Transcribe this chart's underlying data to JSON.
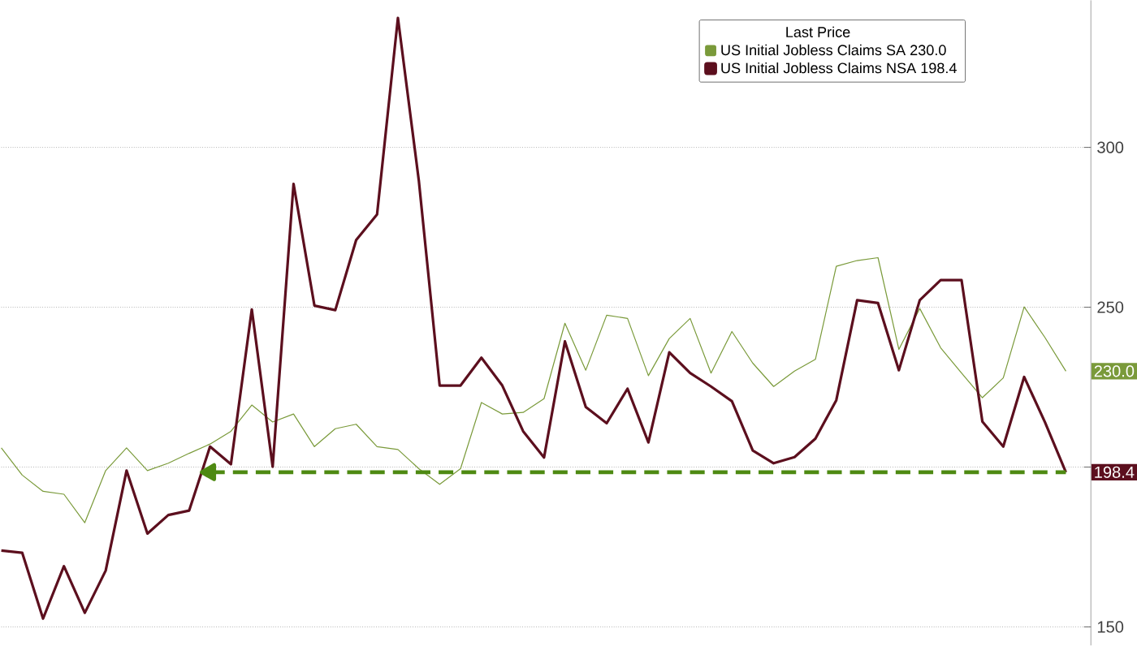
{
  "chart_data": {
    "type": "line",
    "legend_title": "Last Price",
    "legend": "top right",
    "grid": true,
    "categories": [
      null,
      null,
      null,
      null,
      null,
      null,
      null,
      null,
      null,
      null,
      null,
      null,
      null,
      null,
      null,
      null,
      null,
      null,
      null,
      null,
      null,
      null,
      null,
      null,
      null,
      null,
      null,
      null,
      null,
      null,
      null,
      null,
      null,
      null,
      null,
      null,
      null,
      null,
      null,
      null,
      null,
      null,
      null,
      null,
      null,
      null,
      null,
      null,
      null,
      null,
      null,
      null
    ],
    "ylim": [
      144.2,
      346
    ],
    "yticks": [
      150,
      {
        "value": 200,
        "label": null
      },
      250,
      300
    ],
    "series": [
      {
        "name": "US Initial Jobless Claims SA 230.0",
        "color": "#7a9a3a",
        "values": [
          206.0,
          197.5,
          192.4,
          191.5,
          182.6,
          198.9,
          206.0,
          198.9,
          201.2,
          204.3,
          207.2,
          211.2,
          219.4,
          214.1,
          216.6,
          206.4,
          212.0,
          213.4,
          206.4,
          205.5,
          199.5,
          194.6,
          199.5,
          220.2,
          216.6,
          217.1,
          221.4,
          245.0,
          230.3,
          247.5,
          246.5,
          228.6,
          240.2,
          246.5,
          229.4,
          242.4,
          232.5,
          225.2,
          230.0,
          233.7,
          262.8,
          264.6,
          265.5,
          236.8,
          249.6,
          237.3,
          229.4,
          221.7,
          227.9,
          250.1,
          240.5,
          230.0
        ],
        "value_labels": [
          null,
          null,
          null,
          null,
          null,
          null,
          null,
          null,
          null,
          null,
          null,
          null,
          null,
          null,
          null,
          null,
          null,
          null,
          null,
          null,
          null,
          null,
          null,
          null,
          null,
          null,
          null,
          null,
          null,
          null,
          null,
          null,
          null,
          null,
          null,
          null,
          null,
          null,
          null,
          null,
          null,
          null,
          null,
          null,
          null,
          null,
          null,
          null,
          null,
          null,
          null,
          "230.0"
        ]
      },
      {
        "name": "US Initial Jobless Claims NSA 198.4",
        "color": "#5c0f1e",
        "values": [
          173.9,
          173.2,
          152.6,
          169.0,
          154.4,
          167.6,
          198.9,
          179.2,
          185.0,
          186.4,
          206.4,
          200.9,
          249.3,
          200.1,
          288.6,
          250.5,
          249.1,
          271.0,
          279.0,
          340.5,
          289.7,
          225.5,
          225.5,
          234.2,
          225.5,
          211.2,
          203.0,
          239.3,
          218.8,
          213.7,
          224.5,
          207.7,
          235.9,
          229.4,
          225.2,
          220.6,
          205.2,
          201.2,
          203.1,
          208.9,
          220.9,
          252.2,
          251.3,
          230.3,
          252.2,
          258.5,
          258.5,
          214.2,
          206.4,
          228.2,
          214.0,
          198.4
        ],
        "value_labels": [
          null,
          null,
          null,
          null,
          null,
          null,
          null,
          null,
          null,
          null,
          null,
          null,
          null,
          null,
          null,
          null,
          null,
          null,
          null,
          null,
          null,
          null,
          null,
          null,
          null,
          null,
          null,
          null,
          null,
          null,
          null,
          null,
          null,
          null,
          null,
          null,
          null,
          null,
          null,
          null,
          null,
          null,
          null,
          null,
          null,
          null,
          null,
          null,
          null,
          null,
          null,
          "198.4"
        ]
      },
      {
        "color": "#4e8a12",
        "line_style": "dashed",
        "values": [
          null,
          null,
          null,
          null,
          null,
          null,
          null,
          null,
          null,
          null,
          198.4,
          198.4,
          198.4,
          198.4,
          198.4,
          198.4,
          198.4,
          198.4,
          198.4,
          198.4,
          198.4,
          198.4,
          198.4,
          198.4,
          198.4,
          198.4,
          198.4,
          198.4,
          198.4,
          198.4,
          198.4,
          198.4,
          198.4,
          198.4,
          198.4,
          198.4,
          198.4,
          198.4,
          198.4,
          198.4,
          198.4,
          198.4,
          198.4,
          198.4,
          198.4,
          198.4,
          198.4,
          198.4,
          198.4,
          198.4,
          198.4,
          198.4
        ]
      }
    ]
  }
}
